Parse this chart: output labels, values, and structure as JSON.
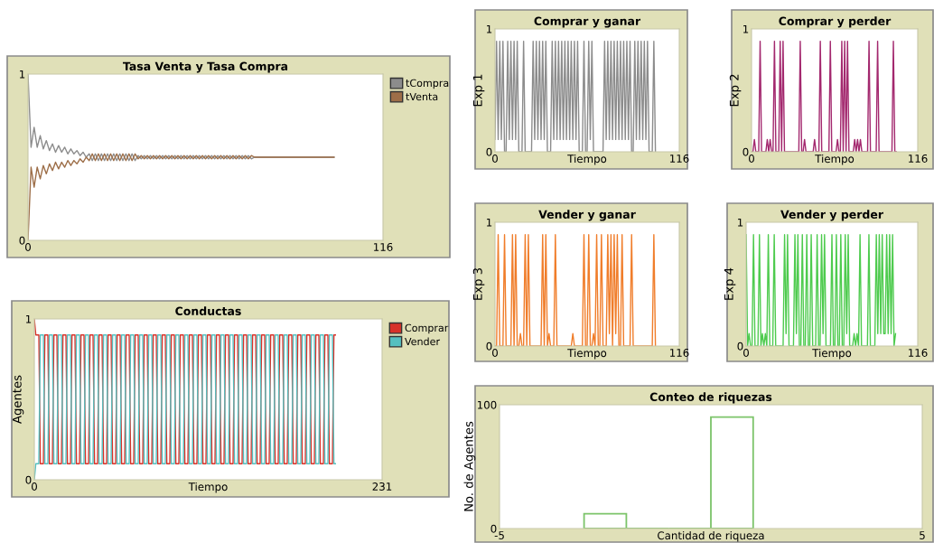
{
  "chart_data": [
    {
      "type": "line",
      "title": "Tasa Venta y Tasa Compra",
      "xlim": [
        0,
        116
      ],
      "xticks": [
        0,
        116
      ],
      "ylim": [
        0,
        1
      ],
      "yticks": [
        0,
        1
      ],
      "legend": "right",
      "x": [
        0,
        1,
        2,
        3,
        4,
        5,
        6,
        7,
        8,
        9,
        10,
        11,
        12,
        13,
        14,
        15,
        16,
        17,
        18,
        19,
        20,
        21,
        22,
        23,
        24,
        25,
        26,
        27,
        28,
        29,
        30,
        31,
        32,
        33,
        34,
        35,
        36,
        37,
        38,
        39,
        40,
        41,
        42,
        43,
        44,
        45,
        46,
        47,
        48,
        49,
        50,
        51,
        52,
        53,
        54,
        55,
        56,
        57,
        58,
        59,
        60,
        61,
        62,
        63,
        64,
        65,
        66,
        67,
        68,
        69,
        70,
        71,
        72,
        73,
        74,
        100
      ],
      "series": [
        {
          "name": "tCompra",
          "color": "#8c8c8c",
          "values": [
            1,
            0.56,
            0.68,
            0.56,
            0.63,
            0.55,
            0.6,
            0.54,
            0.58,
            0.53,
            0.57,
            0.53,
            0.56,
            0.52,
            0.55,
            0.52,
            0.54,
            0.51,
            0.53,
            0.5,
            0.52,
            0.48,
            0.52,
            0.48,
            0.52,
            0.48,
            0.52,
            0.48,
            0.52,
            0.48,
            0.52,
            0.48,
            0.52,
            0.48,
            0.52,
            0.48,
            0.51,
            0.49,
            0.51,
            0.49,
            0.51,
            0.49,
            0.51,
            0.49,
            0.51,
            0.49,
            0.51,
            0.49,
            0.51,
            0.49,
            0.51,
            0.49,
            0.51,
            0.49,
            0.51,
            0.49,
            0.51,
            0.49,
            0.51,
            0.49,
            0.51,
            0.49,
            0.51,
            0.49,
            0.51,
            0.49,
            0.51,
            0.49,
            0.51,
            0.49,
            0.51,
            0.49,
            0.51,
            0.49,
            0.5,
            0.5
          ]
        },
        {
          "name": "tVenta",
          "color": "#9d6e48",
          "values": [
            0,
            0.44,
            0.32,
            0.44,
            0.37,
            0.45,
            0.4,
            0.46,
            0.42,
            0.47,
            0.43,
            0.47,
            0.44,
            0.48,
            0.45,
            0.48,
            0.46,
            0.49,
            0.47,
            0.5,
            0.48,
            0.52,
            0.48,
            0.52,
            0.48,
            0.52,
            0.48,
            0.52,
            0.48,
            0.52,
            0.48,
            0.52,
            0.48,
            0.52,
            0.48,
            0.52,
            0.49,
            0.51,
            0.49,
            0.51,
            0.49,
            0.51,
            0.49,
            0.51,
            0.49,
            0.51,
            0.49,
            0.51,
            0.49,
            0.51,
            0.49,
            0.51,
            0.49,
            0.51,
            0.49,
            0.51,
            0.49,
            0.51,
            0.49,
            0.51,
            0.49,
            0.51,
            0.49,
            0.51,
            0.49,
            0.51,
            0.49,
            0.51,
            0.49,
            0.51,
            0.49,
            0.51,
            0.49,
            0.51,
            0.5,
            0.5
          ]
        }
      ]
    },
    {
      "type": "line",
      "title": "Conductas",
      "xlabel": "Tiempo",
      "ylabel": "Agentes",
      "xlim": [
        0,
        231
      ],
      "xticks": [
        0,
        231
      ],
      "ylim": [
        0,
        1
      ],
      "yticks": [
        0,
        1
      ],
      "legend": "right",
      "x": [
        0,
        1,
        2,
        3,
        4,
        5,
        6,
        7,
        8,
        9,
        10,
        11,
        12,
        13,
        14,
        15,
        16,
        17,
        18,
        19,
        20,
        21,
        22,
        23,
        24,
        25,
        26,
        27,
        28,
        29,
        30,
        31,
        32,
        33,
        34,
        35,
        36,
        37,
        38,
        39,
        40,
        41,
        42,
        43,
        44,
        45,
        46,
        47,
        48,
        49,
        50,
        51,
        52,
        53,
        54,
        55,
        56,
        57,
        58,
        59,
        60,
        61,
        62,
        63,
        64,
        65,
        66,
        67,
        68,
        69,
        70,
        71,
        72,
        73,
        74,
        75,
        76,
        77,
        78,
        79,
        80,
        81,
        82,
        83,
        84,
        85,
        86,
        87,
        88,
        89,
        90,
        91,
        92,
        93,
        94,
        95,
        96,
        97,
        98,
        99,
        100,
        101,
        102,
        103,
        104,
        105,
        106,
        107,
        108,
        109,
        110,
        111,
        112,
        113,
        114,
        115,
        116,
        117,
        118,
        119,
        120,
        121,
        122,
        123,
        124,
        125,
        126,
        127,
        128,
        129,
        130,
        131,
        132,
        133,
        134,
        135,
        136,
        137,
        138,
        139,
        140,
        141,
        142,
        143,
        144,
        145,
        146,
        147,
        148,
        149,
        150,
        151,
        152,
        153,
        154,
        155,
        156,
        157,
        158,
        159,
        160,
        161,
        162,
        163,
        164,
        165,
        166,
        167,
        168,
        169,
        170,
        171,
        172,
        173,
        174,
        175,
        176,
        177,
        178,
        179,
        180,
        181,
        182,
        183,
        184,
        185,
        186,
        187,
        188,
        189,
        190,
        191,
        192,
        193,
        194,
        195,
        196,
        197,
        198,
        199,
        200
      ],
      "series": [
        {
          "name": "Comprar",
          "color": "#d73229",
          "values": [
            1,
            0.9,
            0.9,
            0.9,
            0.1,
            0.1,
            0.1,
            0.9,
            0.9,
            0.9,
            0.1,
            0.1,
            0.1,
            0.9,
            0.9,
            0.9,
            0.1,
            0.1,
            0.1,
            0.9,
            0.9,
            0.9,
            0.1,
            0.1,
            0.1,
            0.9,
            0.9,
            0.9,
            0.1,
            0.1,
            0.1,
            0.9,
            0.9,
            0.9,
            0.1,
            0.1,
            0.1,
            0.9,
            0.9,
            0.9,
            0.1,
            0.1,
            0.1,
            0.9,
            0.9,
            0.9,
            0.1,
            0.1,
            0.1,
            0.9,
            0.9,
            0.9,
            0.1,
            0.1,
            0.1,
            0.9,
            0.9,
            0.9,
            0.1,
            0.1,
            0.1,
            0.9,
            0.9,
            0.9,
            0.1,
            0.1,
            0.1,
            0.9,
            0.9,
            0.9,
            0.1,
            0.1,
            0.1,
            0.9,
            0.9,
            0.9,
            0.1,
            0.1,
            0.1,
            0.9,
            0.9,
            0.9,
            0.1,
            0.1,
            0.1,
            0.9,
            0.9,
            0.9,
            0.1,
            0.1,
            0.1,
            0.9,
            0.9,
            0.9,
            0.1,
            0.1,
            0.1,
            0.9,
            0.9,
            0.9,
            0.1,
            0.1,
            0.1,
            0.9,
            0.9,
            0.9,
            0.1,
            0.1,
            0.1,
            0.9,
            0.9,
            0.9,
            0.1,
            0.1,
            0.1,
            0.9,
            0.9,
            0.9,
            0.1,
            0.1,
            0.1,
            0.9,
            0.9,
            0.9,
            0.1,
            0.1,
            0.1,
            0.9,
            0.9,
            0.9,
            0.1,
            0.1,
            0.1,
            0.9,
            0.9,
            0.9,
            0.1,
            0.1,
            0.1,
            0.9,
            0.9,
            0.9,
            0.1,
            0.1,
            0.1,
            0.9,
            0.9,
            0.9,
            0.1,
            0.1,
            0.1,
            0.9,
            0.9,
            0.9,
            0.1,
            0.1,
            0.1,
            0.9,
            0.9,
            0.9,
            0.1,
            0.1,
            0.1,
            0.9,
            0.9,
            0.9,
            0.1,
            0.1,
            0.1,
            0.9,
            0.9,
            0.9,
            0.1,
            0.1,
            0.1,
            0.9,
            0.9,
            0.9,
            0.1,
            0.1,
            0.1,
            0.9,
            0.9,
            0.9,
            0.1,
            0.1,
            0.1,
            0.9,
            0.9,
            0.9,
            0.1,
            0.1,
            0.1,
            0.9,
            0.9,
            0.9,
            0.1,
            0.1,
            0.1,
            0.9,
            0.9
          ]
        },
        {
          "name": "Vender",
          "color": "#55c0c0",
          "values": [
            0,
            0.1,
            0.1,
            0.1,
            0.9,
            0.9,
            0.9,
            0.1,
            0.1,
            0.1,
            0.9,
            0.9,
            0.9,
            0.1,
            0.1,
            0.1,
            0.9,
            0.9,
            0.9,
            0.1,
            0.1,
            0.1,
            0.9,
            0.9,
            0.9,
            0.1,
            0.1,
            0.1,
            0.9,
            0.9,
            0.9,
            0.1,
            0.1,
            0.1,
            0.9,
            0.9,
            0.9,
            0.1,
            0.1,
            0.1,
            0.9,
            0.9,
            0.9,
            0.1,
            0.1,
            0.1,
            0.9,
            0.9,
            0.9,
            0.1,
            0.1,
            0.1,
            0.9,
            0.9,
            0.9,
            0.1,
            0.1,
            0.1,
            0.9,
            0.9,
            0.9,
            0.1,
            0.1,
            0.1,
            0.9,
            0.9,
            0.9,
            0.1,
            0.1,
            0.1,
            0.9,
            0.9,
            0.9,
            0.1,
            0.1,
            0.1,
            0.9,
            0.9,
            0.9,
            0.1,
            0.1,
            0.1,
            0.9,
            0.9,
            0.9,
            0.1,
            0.1,
            0.1,
            0.9,
            0.9,
            0.9,
            0.1,
            0.1,
            0.1,
            0.9,
            0.9,
            0.9,
            0.1,
            0.1,
            0.1,
            0.9,
            0.9,
            0.9,
            0.1,
            0.1,
            0.1,
            0.9,
            0.9,
            0.9,
            0.1,
            0.1,
            0.1,
            0.9,
            0.9,
            0.9,
            0.1,
            0.1,
            0.1,
            0.9,
            0.9,
            0.9,
            0.1,
            0.1,
            0.1,
            0.9,
            0.9,
            0.9,
            0.1,
            0.1,
            0.1,
            0.9,
            0.9,
            0.9,
            0.1,
            0.1,
            0.1,
            0.9,
            0.9,
            0.9,
            0.1,
            0.1,
            0.1,
            0.9,
            0.9,
            0.9,
            0.1,
            0.1,
            0.1,
            0.9,
            0.9,
            0.9,
            0.1,
            0.1,
            0.1,
            0.9,
            0.9,
            0.9,
            0.1,
            0.1,
            0.1,
            0.9,
            0.9,
            0.9,
            0.1,
            0.1,
            0.1,
            0.9,
            0.9,
            0.9,
            0.1,
            0.1,
            0.1,
            0.9,
            0.9,
            0.9,
            0.1,
            0.1,
            0.1,
            0.9,
            0.9,
            0.9,
            0.1,
            0.1,
            0.1,
            0.9,
            0.9,
            0.9,
            0.1,
            0.1,
            0.1,
            0.9,
            0.9,
            0.9,
            0.1,
            0.1,
            0.1,
            0.9,
            0.9,
            0.9,
            0.1,
            0.1
          ]
        }
      ]
    },
    {
      "type": "line",
      "title": "Comprar y ganar",
      "xlabel": "Tiempo",
      "ylabel": "Exp 1",
      "xlim": [
        0,
        116
      ],
      "xticks": [
        0,
        116
      ],
      "ylim": [
        0,
        1
      ],
      "yticks": [
        0,
        1
      ],
      "x": [
        0,
        1,
        2,
        3,
        4,
        5,
        6,
        7,
        8,
        9,
        10,
        11,
        12,
        13,
        14,
        15,
        16,
        17,
        18,
        19,
        20,
        21,
        22,
        23,
        24,
        25,
        26,
        27,
        28,
        29,
        30,
        31,
        32,
        33,
        34,
        35,
        36,
        37,
        38,
        39,
        40,
        41,
        42,
        43,
        44,
        45,
        46,
        47,
        48,
        49,
        50,
        51,
        52,
        53,
        54,
        55,
        56,
        57,
        58,
        59,
        60,
        61,
        62,
        63,
        64,
        65,
        66,
        67,
        68,
        69,
        70,
        71,
        72,
        73,
        74,
        75,
        76,
        77,
        78,
        79,
        80,
        81,
        82,
        83,
        84,
        85,
        86,
        87,
        88,
        89,
        90,
        91,
        92,
        93,
        94,
        95,
        96,
        97,
        98,
        99,
        100,
        101
      ],
      "series": [
        {
          "color": "#8c8c8c",
          "values": [
            0.1,
            0.9,
            0.1,
            0.9,
            0.1,
            0.9,
            0,
            0,
            0.9,
            0.1,
            0.9,
            0.1,
            0.9,
            0.1,
            0.9,
            0,
            0,
            0,
            0.9,
            0,
            0,
            0,
            0,
            0,
            0.9,
            0.1,
            0.9,
            0.1,
            0.9,
            0.1,
            0.9,
            0.1,
            0.9,
            0,
            0,
            0,
            0.9,
            0.1,
            0.9,
            0.1,
            0.9,
            0.1,
            0.9,
            0.1,
            0.9,
            0.1,
            0.9,
            0.1,
            0.9,
            0.1,
            0.9,
            0.1,
            0.9,
            0,
            0,
            0,
            0.9,
            0,
            0,
            0.9,
            0.1,
            0.9,
            0,
            0,
            0,
            0,
            0,
            0,
            0,
            0.9,
            0.1,
            0.9,
            0.1,
            0.9,
            0.1,
            0.9,
            0.1,
            0.9,
            0.1,
            0.9,
            0.1,
            0.9,
            0.1,
            0.9,
            0.1,
            0.9,
            0,
            0,
            0.9,
            0.1,
            0.9,
            0.1,
            0.9,
            0.1,
            0.9,
            0.1,
            0.9,
            0,
            0,
            0,
            0.9,
            0
          ]
        }
      ]
    },
    {
      "type": "line",
      "title": "Comprar y perder",
      "xlabel": "Tiempo",
      "ylabel": "Exp 2",
      "xlim": [
        0,
        116
      ],
      "xticks": [
        0,
        116
      ],
      "ylim": [
        0,
        1
      ],
      "yticks": [
        0,
        1
      ],
      "x": [
        0,
        1,
        2,
        3,
        4,
        5,
        6,
        7,
        8,
        9,
        10,
        11,
        12,
        13,
        14,
        15,
        16,
        17,
        18,
        19,
        20,
        21,
        22,
        23,
        24,
        25,
        26,
        27,
        28,
        29,
        30,
        31,
        32,
        33,
        34,
        35,
        36,
        37,
        38,
        39,
        40,
        41,
        42,
        43,
        44,
        45,
        46,
        47,
        48,
        49,
        50,
        51,
        52,
        53,
        54,
        55,
        56,
        57,
        58,
        59,
        60,
        61,
        62,
        63,
        64,
        65,
        66,
        67,
        68,
        69,
        70,
        71,
        72,
        73,
        74,
        75,
        76,
        77,
        78,
        79,
        80,
        81,
        82,
        83,
        84,
        85,
        86,
        87,
        88,
        89,
        90,
        91,
        92,
        93,
        94,
        95,
        96,
        97,
        98,
        99,
        100,
        101
      ],
      "series": [
        {
          "color": "#a3286e",
          "values": [
            0,
            0,
            0.1,
            0,
            0,
            0,
            0.9,
            0,
            0,
            0,
            0,
            0.1,
            0,
            0.1,
            0,
            0,
            0.9,
            0,
            0,
            0,
            0.9,
            0,
            0.9,
            0,
            0,
            0,
            0,
            0,
            0,
            0,
            0,
            0,
            0,
            0,
            0.9,
            0,
            0,
            0.1,
            0,
            0,
            0,
            0,
            0,
            0,
            0.1,
            0,
            0,
            0,
            0.9,
            0,
            0,
            0,
            0,
            0,
            0,
            0.9,
            0,
            0,
            0,
            0,
            0.1,
            0,
            0,
            0.9,
            0,
            0.9,
            0,
            0.9,
            0,
            0,
            0,
            0,
            0.1,
            0,
            0.1,
            0,
            0.1,
            0,
            0,
            0,
            0,
            0,
            0.9,
            0,
            0,
            0,
            0,
            0,
            0.9,
            0,
            0,
            0,
            0,
            0,
            0,
            0,
            0,
            0,
            0,
            0.9,
            0,
            0
          ]
        }
      ]
    },
    {
      "type": "line",
      "title": "Vender y ganar",
      "xlabel": "Tiempo",
      "ylabel": "Exp 3",
      "xlim": [
        0,
        116
      ],
      "xticks": [
        0,
        116
      ],
      "ylim": [
        0,
        1
      ],
      "yticks": [
        0,
        1
      ],
      "x": [
        0,
        1,
        2,
        3,
        4,
        5,
        6,
        7,
        8,
        9,
        10,
        11,
        12,
        13,
        14,
        15,
        16,
        17,
        18,
        19,
        20,
        21,
        22,
        23,
        24,
        25,
        26,
        27,
        28,
        29,
        30,
        31,
        32,
        33,
        34,
        35,
        36,
        37,
        38,
        39,
        40,
        41,
        42,
        43,
        44,
        45,
        46,
        47,
        48,
        49,
        50,
        51,
        52,
        53,
        54,
        55,
        56,
        57,
        58,
        59,
        60,
        61,
        62,
        63,
        64,
        65,
        66,
        67,
        68,
        69,
        70,
        71,
        72,
        73,
        74,
        75,
        76,
        77,
        78,
        79,
        80,
        81,
        82,
        83,
        84,
        85,
        86,
        87,
        88,
        89,
        90,
        91,
        92,
        93,
        94,
        95,
        96,
        97,
        98,
        99,
        100,
        101
      ],
      "series": [
        {
          "color": "#f07d2a",
          "values": [
            0,
            0,
            0.9,
            0,
            0,
            0,
            0.9,
            0,
            0,
            0,
            0,
            0.9,
            0,
            0.9,
            0,
            0,
            0.1,
            0,
            0,
            0.9,
            0,
            0.9,
            0,
            0,
            0,
            0,
            0,
            0,
            0,
            0,
            0.9,
            0,
            0.9,
            0,
            0.1,
            0,
            0,
            0,
            0.9,
            0,
            0,
            0,
            0,
            0,
            0,
            0,
            0,
            0,
            0,
            0.1,
            0,
            0,
            0,
            0,
            0,
            0,
            0.9,
            0,
            0,
            0.9,
            0,
            0,
            0.1,
            0,
            0.9,
            0,
            0,
            0.9,
            0,
            0,
            0,
            0.9,
            0.1,
            0.9,
            0,
            0.9,
            0.1,
            0.9,
            0,
            0,
            0.9,
            0,
            0,
            0,
            0,
            0,
            0.9,
            0,
            0,
            0,
            0,
            0,
            0,
            0,
            0,
            0,
            0,
            0,
            0,
            0,
            0.9,
            0
          ]
        }
      ]
    },
    {
      "type": "line",
      "title": "Vender y perder",
      "xlabel": "Tiempo",
      "ylabel": "Exp 4",
      "xlim": [
        0,
        116
      ],
      "xticks": [
        0,
        116
      ],
      "ylim": [
        0,
        1
      ],
      "yticks": [
        0,
        1
      ],
      "x": [
        0,
        1,
        2,
        3,
        4,
        5,
        6,
        7,
        8,
        9,
        10,
        11,
        12,
        13,
        14,
        15,
        16,
        17,
        18,
        19,
        20,
        21,
        22,
        23,
        24,
        25,
        26,
        27,
        28,
        29,
        30,
        31,
        32,
        33,
        34,
        35,
        36,
        37,
        38,
        39,
        40,
        41,
        42,
        43,
        44,
        45,
        46,
        47,
        48,
        49,
        50,
        51,
        52,
        53,
        54,
        55,
        56,
        57,
        58,
        59,
        60,
        61,
        62,
        63,
        64,
        65,
        66,
        67,
        68,
        69,
        70,
        71,
        72,
        73,
        74,
        75,
        76,
        77,
        78,
        79,
        80,
        81,
        82,
        83,
        84,
        85,
        86,
        87,
        88,
        89,
        90,
        91,
        92,
        93,
        94,
        95,
        96,
        97,
        98,
        99,
        100,
        101
      ],
      "series": [
        {
          "color": "#4ecb4e",
          "values": [
            0.9,
            0,
            0.1,
            0,
            0,
            0.9,
            0,
            0,
            0,
            0.9,
            0,
            0.1,
            0,
            0.1,
            0,
            0.9,
            0,
            0,
            0,
            0.9,
            0,
            0,
            0,
            0,
            0,
            0,
            0.9,
            0.1,
            0.9,
            0,
            0,
            0,
            0,
            0.9,
            0.1,
            0.9,
            0,
            0,
            0.9,
            0,
            0,
            0.9,
            0,
            0,
            0.9,
            0,
            0,
            0,
            0.9,
            0,
            0,
            0.9,
            0.1,
            0.9,
            0,
            0,
            0,
            0,
            0.9,
            0,
            0,
            0.9,
            0,
            0,
            0.9,
            0,
            0,
            0.9,
            0.1,
            0.9,
            0,
            0,
            0,
            0.1,
            0,
            0.1,
            0,
            0.9,
            0,
            0,
            0,
            0,
            0,
            0.9,
            0,
            0,
            0,
            0,
            0.9,
            0.1,
            0.9,
            0.1,
            0.9,
            0.1,
            0.1,
            0.9,
            0.1,
            0.9,
            0.1,
            0.9,
            0,
            0.1
          ]
        }
      ]
    },
    {
      "type": "histogram",
      "title": "Conteo de riquezas",
      "xlabel": "Cantidad de riqueza",
      "ylabel": "No. de Agentes",
      "xlim": [
        -5,
        5
      ],
      "xticks": [
        -5,
        5
      ],
      "ylim": [
        0,
        100
      ],
      "yticks": [
        0,
        100
      ],
      "bins": [
        -3,
        -2,
        -1,
        0,
        1
      ],
      "values": [
        12,
        0,
        0,
        90
      ],
      "color": "#7cc46a"
    }
  ]
}
